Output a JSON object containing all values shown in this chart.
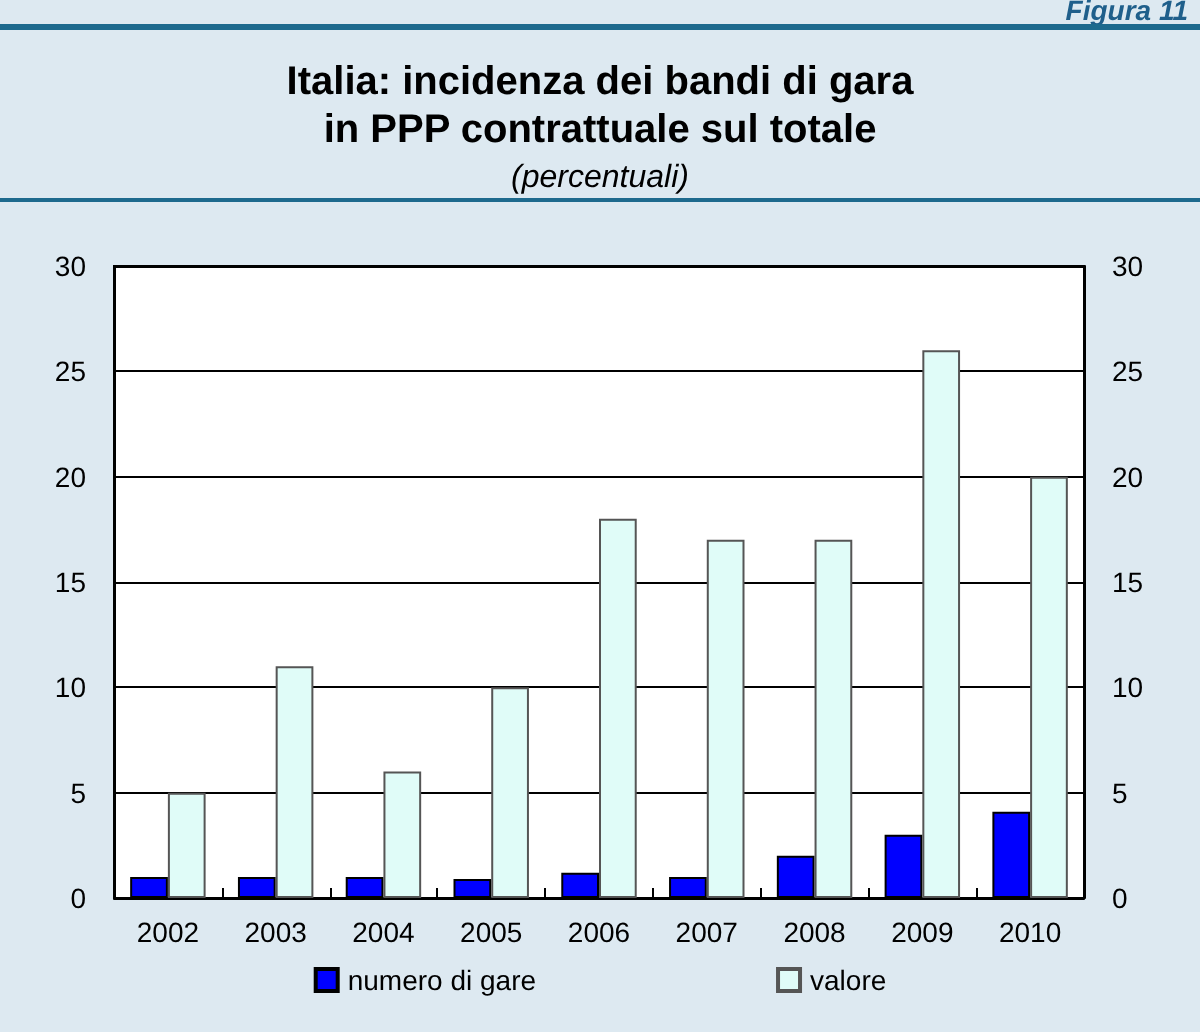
{
  "chart_data": {
    "type": "bar",
    "title": "Italia: incidenza dei bandi di gara\nin PPP contrattuale sul totale",
    "subtitle": "(percentuali)",
    "annotations": [
      "Figura 11"
    ],
    "categories": [
      "2002",
      "2003",
      "2004",
      "2005",
      "2006",
      "2007",
      "2008",
      "2009",
      "2010"
    ],
    "series": [
      {
        "name": "numero di gare",
        "color": "#0000ff",
        "values": [
          1,
          1,
          1,
          0.9,
          1.2,
          1,
          2,
          3,
          4.1
        ]
      },
      {
        "name": "valore",
        "color": "#e0fcf8",
        "values": [
          5,
          11,
          6,
          10,
          18,
          17,
          17,
          26,
          20
        ]
      }
    ],
    "ylim": [
      0,
      30
    ],
    "yticks": [
      0,
      5,
      10,
      15,
      20,
      25,
      30
    ],
    "y2lim": [
      0,
      30
    ],
    "y2ticks": [
      0,
      5,
      10,
      15,
      20,
      25,
      30
    ],
    "grid": "y",
    "legend": "bottom"
  }
}
